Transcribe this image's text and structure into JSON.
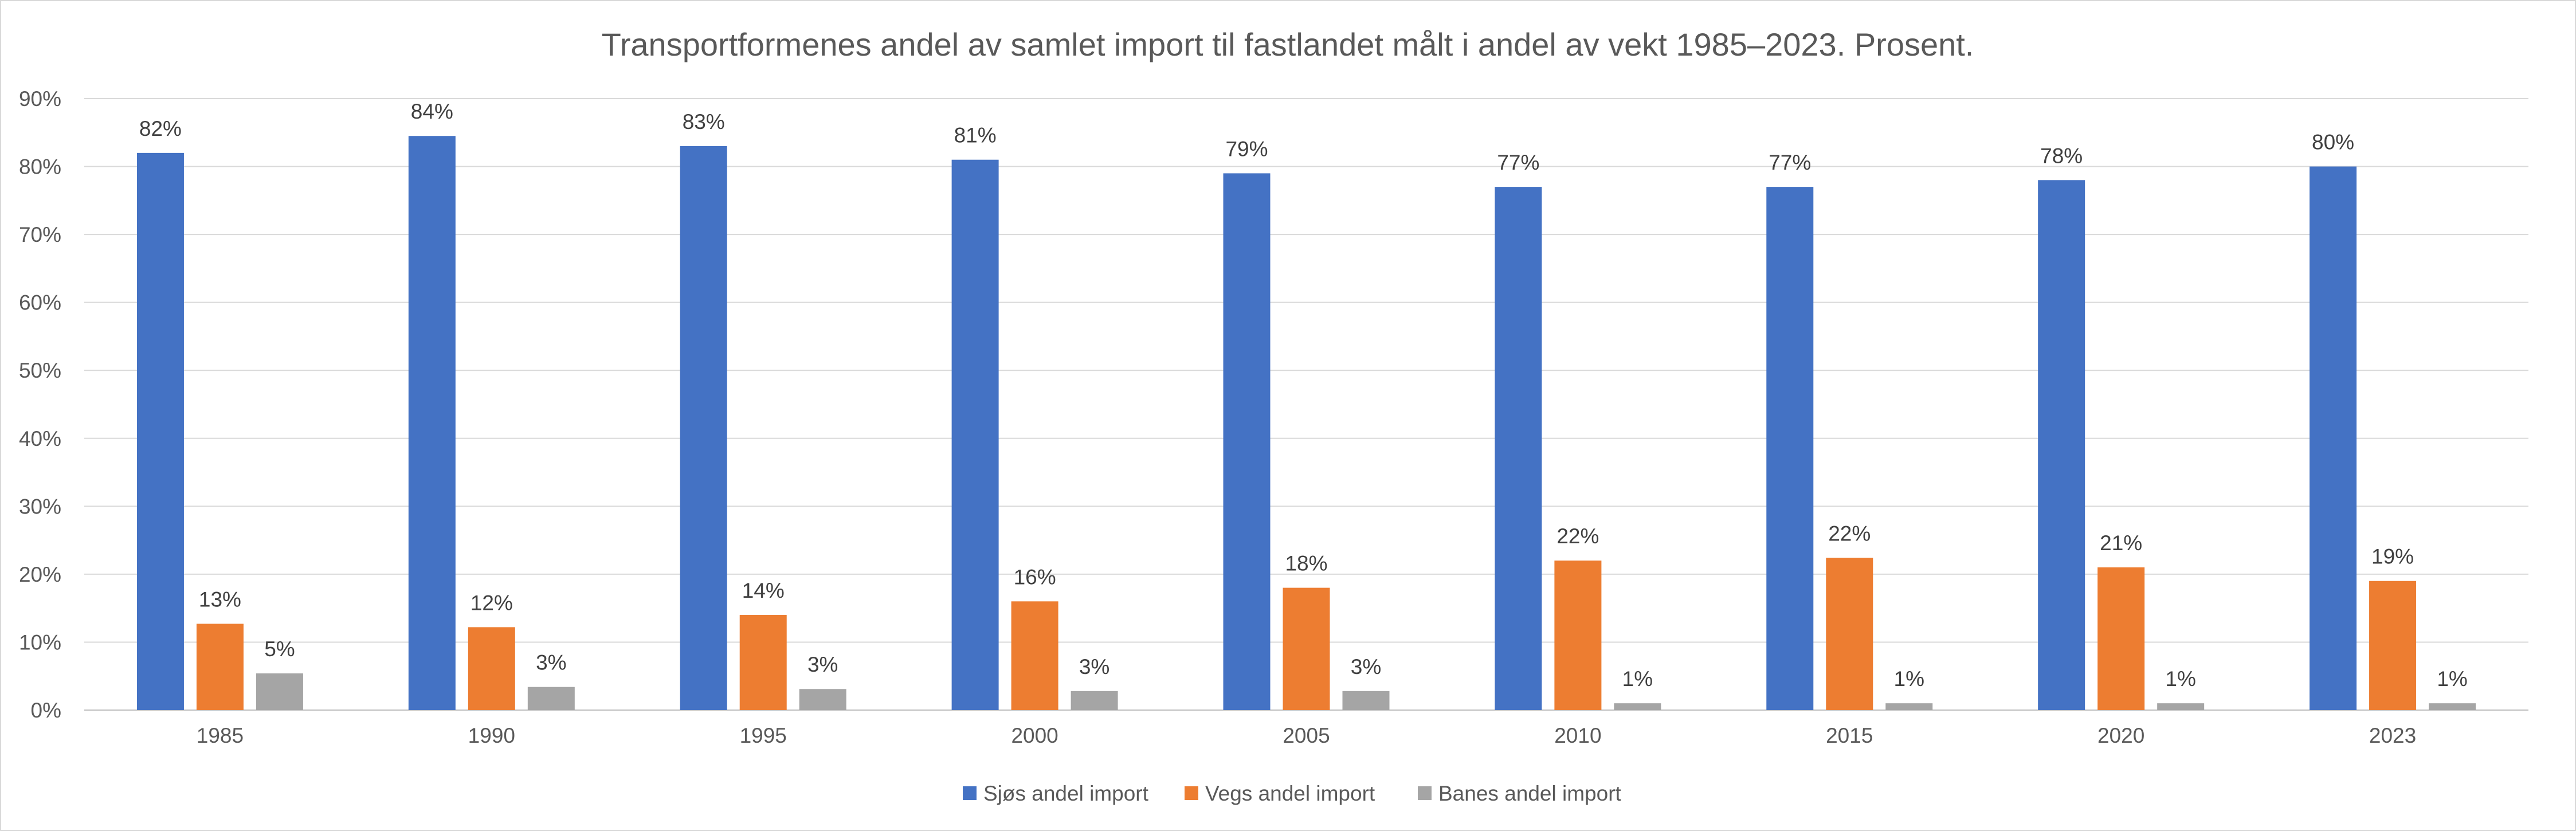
{
  "chart_data": {
    "type": "bar",
    "title": "Transportformenes andel av samlet import til fastlandet målt i andel av vekt 1985–2023. Prosent.",
    "xlabel": "",
    "ylabel": "",
    "categories": [
      "1985",
      "1990",
      "1995",
      "2000",
      "2005",
      "2010",
      "2015",
      "2020",
      "2023"
    ],
    "series": [
      {
        "name": "Sjøs andel import",
        "color": "#4472c4",
        "values": [
          82,
          84.5,
          83,
          81,
          79,
          77,
          77,
          78,
          80
        ],
        "labels": [
          "82%",
          "84%",
          "83%",
          "81%",
          "79%",
          "77%",
          "77%",
          "78%",
          "80%"
        ]
      },
      {
        "name": "Vegs andel import",
        "color": "#ed7d31",
        "values": [
          12.7,
          12.2,
          14,
          16,
          18,
          22,
          22.4,
          21,
          19
        ],
        "labels": [
          "13%",
          "12%",
          "14%",
          "16%",
          "18%",
          "22%",
          "22%",
          "21%",
          "19%"
        ]
      },
      {
        "name": "Banes andel import",
        "color": "#a5a5a5",
        "values": [
          5.4,
          3.4,
          3.1,
          2.8,
          2.8,
          1,
          1,
          1,
          1
        ],
        "labels": [
          "5%",
          "3%",
          "3%",
          "3%",
          "3%",
          "1%",
          "1%",
          "1%",
          "1%"
        ]
      }
    ],
    "ylim": [
      0,
      90
    ],
    "yticks": [
      "0%",
      "10%",
      "20%",
      "30%",
      "40%",
      "50%",
      "60%",
      "70%",
      "80%",
      "90%"
    ],
    "grid": true,
    "legend_position": "bottom"
  }
}
